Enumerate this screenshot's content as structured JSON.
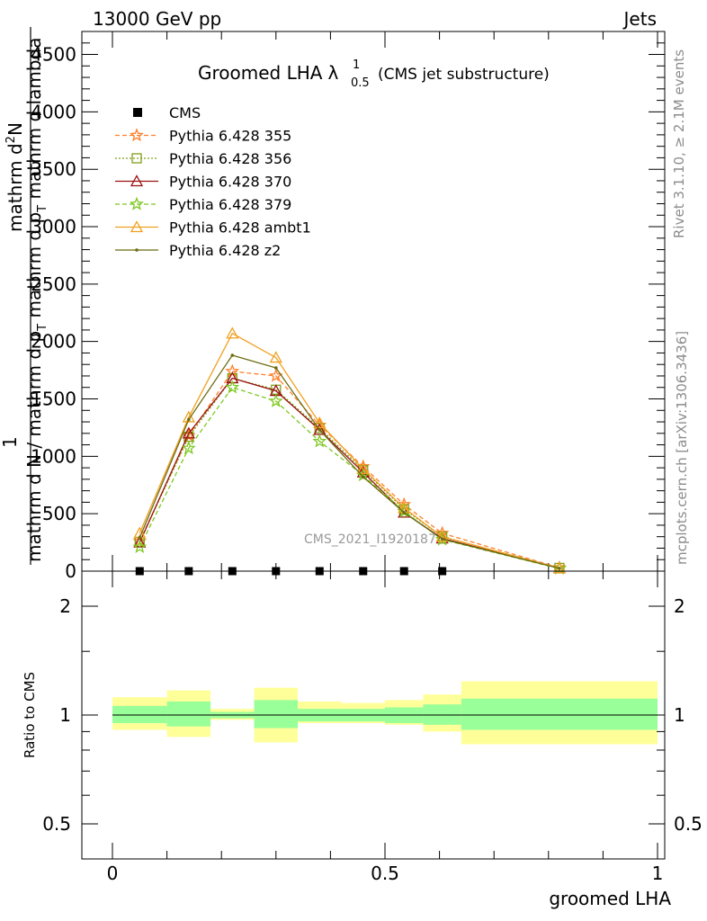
{
  "header": {
    "left": "13000 GeV pp",
    "right": "Jets",
    "side_top": "Rivet 3.1.10, ≥ 2.1M events",
    "side_bottom": "mcplots.cern.ch [arXiv:1306.3436]"
  },
  "chart_data": {
    "type": "line",
    "title_main": "Groomed LHA",
    "title_symbol": "λ",
    "title_sup": "1",
    "title_sub": "0.5",
    "title_note": "(CMS jet substructure)",
    "watermark": "CMS_2021_I1920187",
    "xlabel": "groomed LHA",
    "ylabel_lines": [
      "1",
      "mathrm d N / mathrm d p_T mathrm d p_T mathrm d lambda",
      "mathrm d^2N"
    ],
    "ylabel_parts": {
      "numerator": "mathrm d",
      "numerator_sup": "2",
      "numerator_tail": "N",
      "denominator_one": "1",
      "denominator": "mathrm d N / mathrm d p",
      "denominator_sub": "T",
      "denominator_mid": " mathrm d p",
      "denominator_mid_sub": "T",
      "denominator_tail": " mathrm d lambda"
    },
    "xlim": [
      0,
      1
    ],
    "ylim": [
      0,
      4700
    ],
    "x_ticks": [
      {
        "v": 0,
        "label": "0"
      },
      {
        "v": 0.5,
        "label": "0.5"
      },
      {
        "v": 1,
        "label": "1"
      }
    ],
    "y_ticks": [
      {
        "v": 0,
        "label": "0"
      },
      {
        "v": 500,
        "label": "500"
      },
      {
        "v": 1000,
        "label": "1000"
      },
      {
        "v": 1500,
        "label": "1500"
      },
      {
        "v": 2000,
        "label": "2000"
      },
      {
        "v": 2500,
        "label": "2500"
      },
      {
        "v": 3000,
        "label": "3000"
      },
      {
        "v": 3500,
        "label": "3500"
      },
      {
        "v": 4000,
        "label": "4000"
      },
      {
        "v": 4500,
        "label": "4500"
      }
    ],
    "bin_edges": [
      0,
      0.1,
      0.18,
      0.26,
      0.34,
      0.42,
      0.5,
      0.57,
      0.64,
      1.0
    ],
    "data": {
      "name": "CMS",
      "x": [
        0.05,
        0.14,
        0.22,
        0.3,
        0.38,
        0.46,
        0.535,
        0.605,
        0.82
      ],
      "y": [
        0,
        0,
        0,
        0,
        0,
        0,
        0,
        0,
        0
      ],
      "color": "#000000"
    },
    "series": [
      {
        "name": "Pythia 6.428 355",
        "color": "#ff7f2a",
        "dash": "5,3",
        "marker": "star",
        "x": [
          0.05,
          0.14,
          0.22,
          0.3,
          0.38,
          0.46,
          0.535,
          0.605,
          0.82
        ],
        "y": [
          260,
          1180,
          1740,
          1700,
          1270,
          910,
          580,
          330,
          30
        ]
      },
      {
        "name": "Pythia 6.428 356",
        "color": "#7f9f1a",
        "dash": "2,2",
        "marker": "square",
        "x": [
          0.05,
          0.14,
          0.22,
          0.3,
          0.38,
          0.46,
          0.535,
          0.605,
          0.82
        ],
        "y": [
          255,
          1170,
          1680,
          1580,
          1245,
          880,
          540,
          300,
          28
        ]
      },
      {
        "name": "Pythia 6.428 370",
        "color": "#9b1111",
        "dash": "",
        "marker": "triangle",
        "x": [
          0.05,
          0.14,
          0.22,
          0.3,
          0.38,
          0.46,
          0.535,
          0.605,
          0.82
        ],
        "y": [
          250,
          1200,
          1680,
          1570,
          1230,
          860,
          510,
          285,
          25
        ]
      },
      {
        "name": "Pythia 6.428 379",
        "color": "#7ec820",
        "dash": "5,3",
        "marker": "star",
        "x": [
          0.05,
          0.14,
          0.22,
          0.3,
          0.38,
          0.46,
          0.535,
          0.605,
          0.82
        ],
        "y": [
          210,
          1070,
          1600,
          1480,
          1130,
          835,
          520,
          275,
          22
        ]
      },
      {
        "name": "Pythia 6.428 ambt1",
        "color": "#f0a020",
        "dash": "",
        "marker": "triangle",
        "x": [
          0.05,
          0.14,
          0.22,
          0.3,
          0.38,
          0.46,
          0.535,
          0.605,
          0.82
        ],
        "y": [
          330,
          1340,
          2070,
          1860,
          1290,
          890,
          550,
          300,
          26
        ]
      },
      {
        "name": "Pythia 6.428 z2",
        "color": "#6b6b10",
        "dash": "",
        "marker": "dot",
        "x": [
          0.05,
          0.14,
          0.22,
          0.3,
          0.38,
          0.46,
          0.535,
          0.605,
          0.82
        ],
        "y": [
          290,
          1320,
          1880,
          1770,
          1230,
          820,
          510,
          280,
          24
        ]
      }
    ],
    "ratio": {
      "ylabel": "Ratio to CMS",
      "ylim": [
        0.4,
        2.5
      ],
      "y_ticks": [
        {
          "v": 0.5,
          "label": "0.5"
        },
        {
          "v": 1,
          "label": "1"
        },
        {
          "v": 2,
          "label": "2"
        }
      ],
      "band_inner": [
        [
          0.95,
          1.06
        ],
        [
          0.93,
          1.09
        ],
        [
          0.98,
          1.02
        ],
        [
          0.92,
          1.1
        ],
        [
          0.96,
          1.04
        ],
        [
          0.96,
          1.04
        ],
        [
          0.95,
          1.05
        ],
        [
          0.94,
          1.07
        ],
        [
          0.91,
          1.11
        ]
      ],
      "band_outer": [
        [
          0.91,
          1.12
        ],
        [
          0.87,
          1.17
        ],
        [
          0.97,
          1.04
        ],
        [
          0.84,
          1.19
        ],
        [
          0.95,
          1.09
        ],
        [
          0.95,
          1.08
        ],
        [
          0.94,
          1.1
        ],
        [
          0.9,
          1.14
        ],
        [
          0.83,
          1.24
        ]
      ],
      "inner_color": "#99ff99",
      "outer_color": "#ffff99"
    }
  }
}
